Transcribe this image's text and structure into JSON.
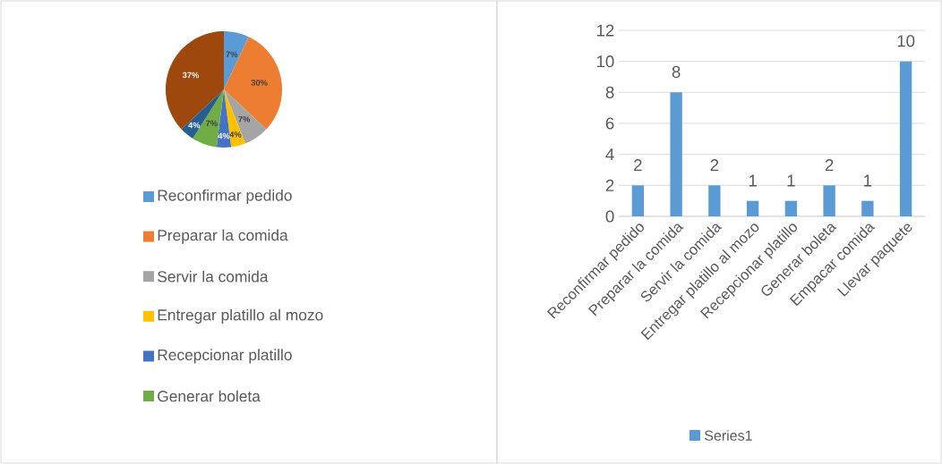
{
  "chart_data": [
    {
      "type": "pie",
      "categories": [
        "Reconfirmar pedido",
        "Preparar la comida",
        "Servir la comida",
        "Entregar platillo al mozo",
        "Recepcionar platillo",
        "Generar boleta",
        null,
        null
      ],
      "values": [
        7,
        30,
        7,
        4,
        4,
        7,
        4,
        37
      ],
      "value_labels": [
        "7%",
        "30%",
        "7%",
        "4%",
        "4%",
        "7%",
        "4%",
        "37%"
      ],
      "colors": [
        "#5b9bd5",
        "#ed7d31",
        "#a5a5a5",
        "#ffc000",
        "#4472c4",
        "#70ad47",
        "#255e91",
        "#9e480e"
      ],
      "legend": "bottom"
    },
    {
      "type": "bar",
      "categories": [
        "Reconfirmar pedido",
        "Preparar la comida",
        "Servir la comida",
        "Entregar platillo al mozo",
        "Recepcionar platillo",
        "Generar boleta",
        "Empacar comida",
        "Llevar paquete"
      ],
      "series": [
        {
          "name": "Series1",
          "color": "#5b9bd5",
          "values": [
            2,
            8,
            2,
            1,
            1,
            2,
            1,
            10
          ]
        }
      ],
      "ylim": [
        0,
        12
      ],
      "yticks": [
        0,
        2,
        4,
        6,
        8,
        10,
        12
      ],
      "grid": "y",
      "data_labels": true,
      "legend": "bottom"
    }
  ]
}
